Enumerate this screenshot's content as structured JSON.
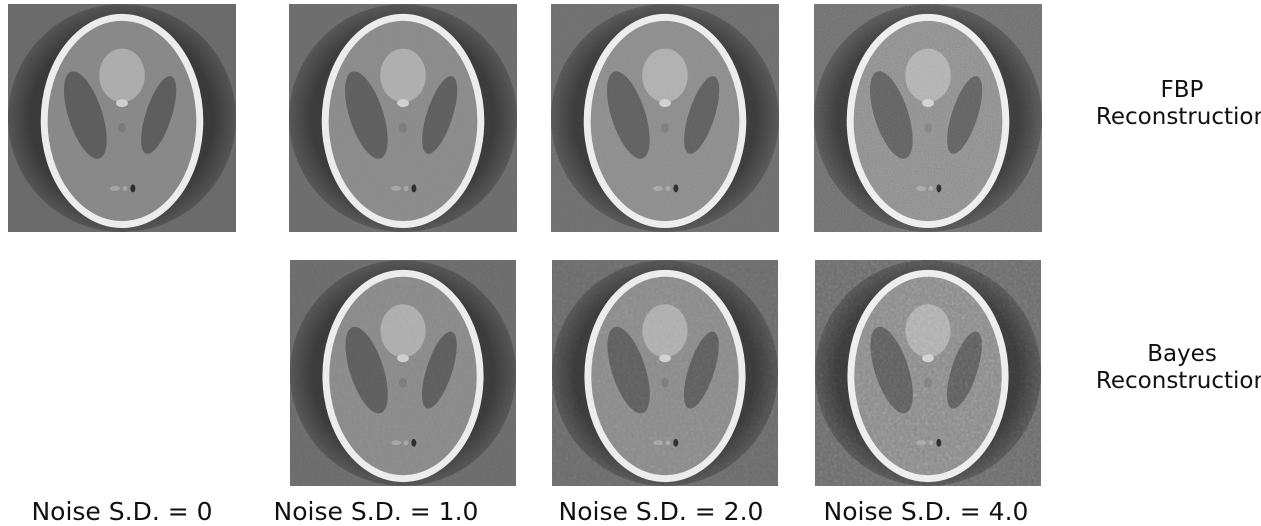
{
  "rows": [
    {
      "label_lines": [
        "FBP",
        "Reconstruction"
      ]
    },
    {
      "label_lines": [
        "Bayes",
        "Reconstruction"
      ]
    }
  ],
  "columns": [
    {
      "label": "Noise S.D. = 0"
    },
    {
      "label": "Noise S.D. = 1.0"
    },
    {
      "label": "Noise S.D. = 2.0"
    },
    {
      "label": "Noise S.D. = 4.0"
    }
  ]
}
